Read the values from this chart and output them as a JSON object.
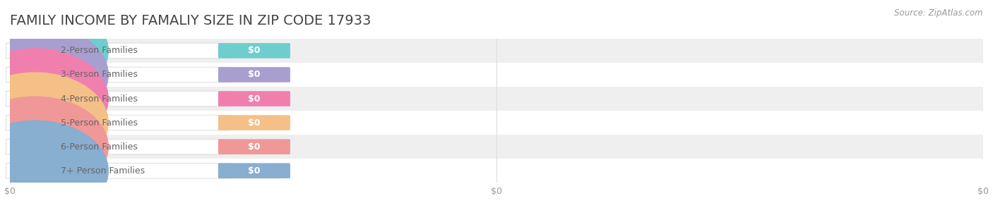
{
  "title": "FAMILY INCOME BY FAMALIY SIZE IN ZIP CODE 17933",
  "source": "Source: ZipAtlas.com",
  "categories": [
    "2-Person Families",
    "3-Person Families",
    "4-Person Families",
    "5-Person Families",
    "6-Person Families",
    "7+ Person Families"
  ],
  "values": [
    0,
    0,
    0,
    0,
    0,
    0
  ],
  "bar_colors": [
    "#6ecece",
    "#a89fd0",
    "#f07fae",
    "#f5bf88",
    "#f09898",
    "#88aed0"
  ],
  "background_color": "#ffffff",
  "row_bg_even": "#efefef",
  "row_bg_odd": "#ffffff",
  "title_fontsize": 14,
  "label_fontsize": 9,
  "tick_fontsize": 9,
  "source_fontsize": 8.5,
  "title_color": "#444444",
  "label_text_color": "#666666",
  "source_color": "#999999",
  "tick_color": "#999999",
  "grid_color": "#dddddd",
  "x_ticks": [
    0.0,
    0.5,
    1.0
  ],
  "x_tick_labels": [
    "$0",
    "$0",
    "$0"
  ]
}
